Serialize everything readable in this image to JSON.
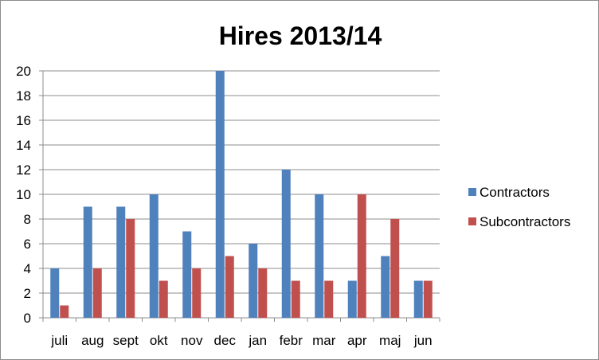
{
  "chart_data": {
    "type": "bar",
    "title": "Hires 2013/14",
    "xlabel": "",
    "ylabel": "",
    "categories": [
      "juli",
      "aug",
      "sept",
      "okt",
      "nov",
      "dec",
      "jan",
      "febr",
      "mar",
      "apr",
      "maj",
      "jun"
    ],
    "series": [
      {
        "name": "Contractors",
        "color": "#4f81bd",
        "values": [
          4,
          9,
          9,
          10,
          7,
          20,
          6,
          12,
          10,
          3,
          5,
          3
        ]
      },
      {
        "name": "Subcontractors",
        "color": "#c0504d",
        "values": [
          1,
          4,
          8,
          3,
          4,
          5,
          4,
          3,
          3,
          10,
          8,
          3
        ]
      }
    ],
    "ylim": [
      0,
      20
    ],
    "yticks": [
      0,
      2,
      4,
      6,
      8,
      10,
      12,
      14,
      16,
      18,
      20
    ],
    "grid": true,
    "legend_position": "right"
  }
}
